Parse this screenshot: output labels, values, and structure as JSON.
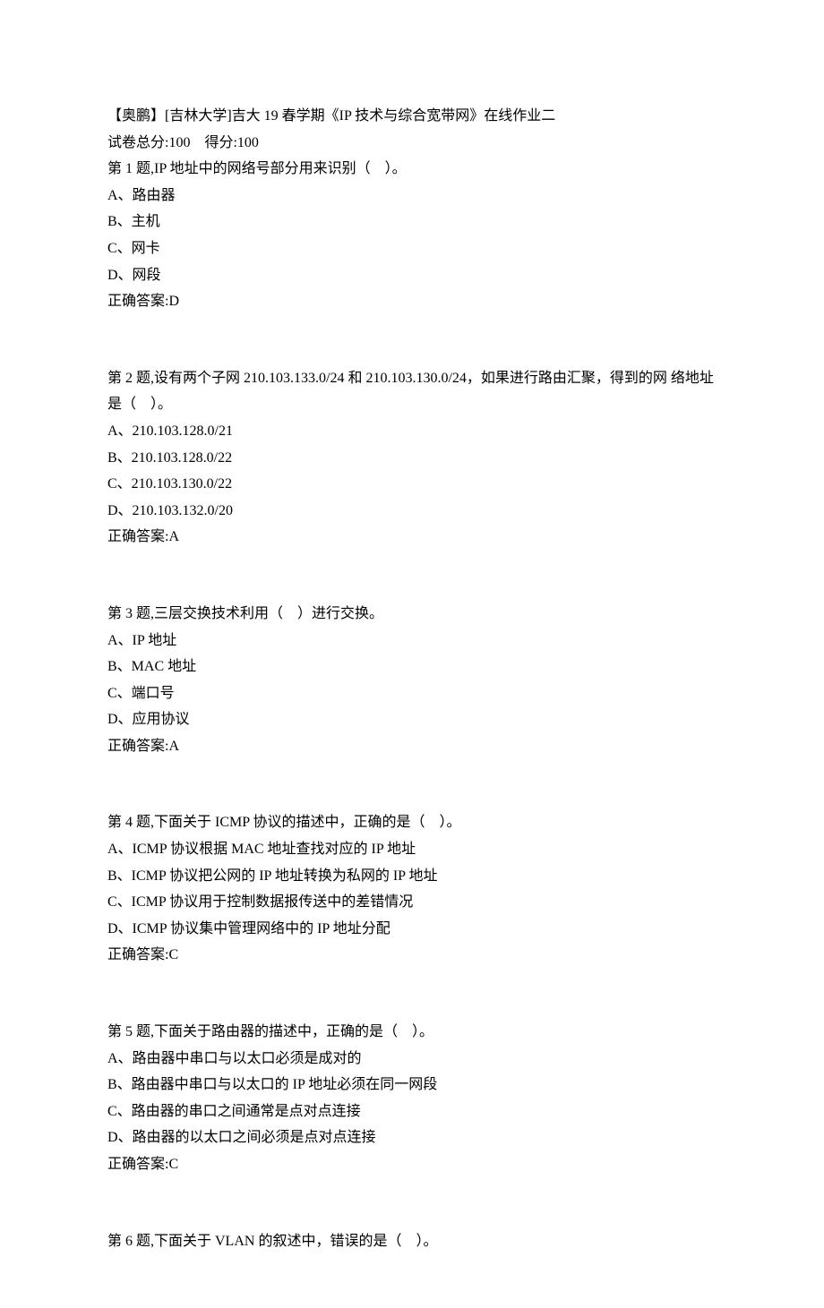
{
  "header": {
    "title": "【奥鹏】[吉林大学]吉大 19 春学期《IP 技术与综合宽带网》在线作业二",
    "total_label": "试卷总分:100",
    "score_label": "得分:100"
  },
  "questions": [
    {
      "prompt": "第 1 题,IP 地址中的网络号部分用来识别（    ）。",
      "options": [
        "A、路由器",
        "B、主机",
        "C、网卡",
        "D、网段"
      ],
      "answer": "正确答案:D"
    },
    {
      "prompt": "第 2 题,设有两个子网 210.103.133.0/24 和 210.103.130.0/24，如果进行路由汇聚，得到的网 络地址是（    ）。",
      "options": [
        "A、210.103.128.0/21",
        "B、210.103.128.0/22",
        "C、210.103.130.0/22",
        "D、210.103.132.0/20"
      ],
      "answer": "正确答案:A"
    },
    {
      "prompt": "第 3 题,三层交换技术利用（    ）进行交换。",
      "options": [
        "A、IP 地址",
        "B、MAC 地址",
        "C、端口号",
        "D、应用协议"
      ],
      "answer": "正确答案:A"
    },
    {
      "prompt": "第 4 题,下面关于 ICMP 协议的描述中，正确的是（    ）。",
      "options": [
        "A、ICMP 协议根据 MAC 地址查找对应的 IP 地址",
        "B、ICMP 协议把公网的 IP 地址转换为私网的 IP 地址",
        "C、ICMP 协议用于控制数据报传送中的差错情况",
        "D、ICMP 协议集中管理网络中的 IP 地址分配"
      ],
      "answer": "正确答案:C"
    },
    {
      "prompt": "第 5 题,下面关于路由器的描述中，正确的是（    ）。",
      "options": [
        "A、路由器中串口与以太口必须是成对的",
        "B、路由器中串口与以太口的 IP 地址必须在同一网段",
        "C、路由器的串口之间通常是点对点连接",
        "D、路由器的以太口之间必须是点对点连接"
      ],
      "answer": "正确答案:C"
    },
    {
      "prompt": "第 6 题,下面关于 VLAN 的叙述中，错误的是（    ）。",
      "options": [],
      "answer": ""
    }
  ]
}
